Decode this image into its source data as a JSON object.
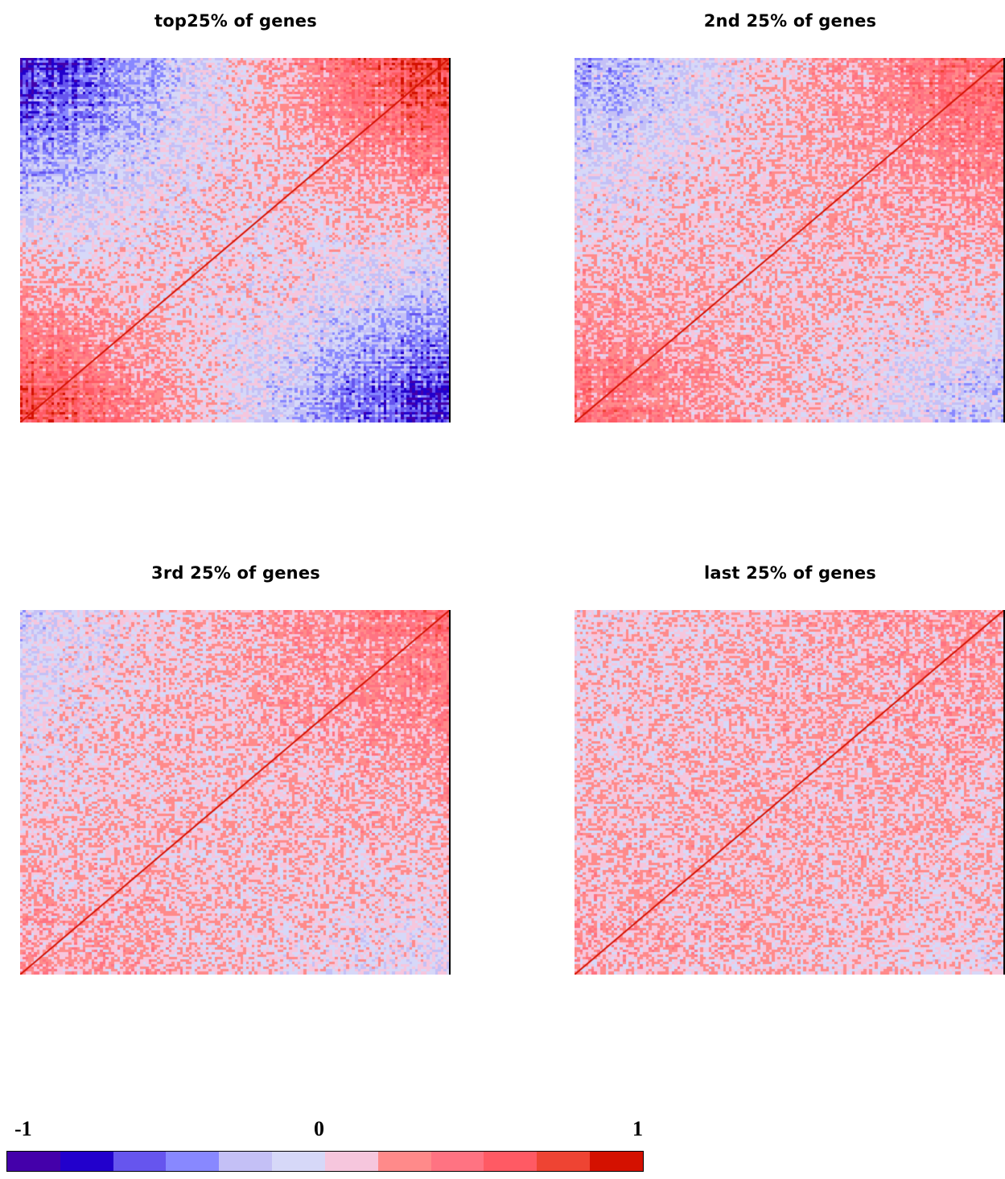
{
  "chart_data": [
    {
      "type": "heatmap",
      "title": "top25% of genes",
      "matrix": "gene-gene correlation, symmetric, diagonal = 1",
      "diagonal_value": 1,
      "blocks": [
        {
          "region": "upper-left",
          "value": -0.85
        },
        {
          "region": "upper-right",
          "value": 0.85
        },
        {
          "region": "lower-left",
          "value": 0.75
        },
        {
          "region": "lower-right",
          "value": -0.85
        },
        {
          "region": "center",
          "value": 0.05
        }
      ],
      "value_range": [
        -1,
        1
      ],
      "grid": false
    },
    {
      "type": "heatmap",
      "title": "2nd 25% of genes",
      "matrix": "gene-gene correlation, symmetric, diagonal = 1",
      "diagonal_value": 1,
      "blocks": [
        {
          "region": "upper-left",
          "value": -0.4
        },
        {
          "region": "upper-right",
          "value": 0.55
        },
        {
          "region": "lower-left",
          "value": 0.45
        },
        {
          "region": "lower-right",
          "value": -0.3
        },
        {
          "region": "center",
          "value": 0.1
        }
      ],
      "value_range": [
        -1,
        1
      ],
      "grid": false
    },
    {
      "type": "heatmap",
      "title": "3rd 25% of genes",
      "matrix": "gene-gene correlation, symmetric, diagonal = 1",
      "diagonal_value": 1,
      "blocks": [
        {
          "region": "upper-left",
          "value": -0.15
        },
        {
          "region": "upper-right",
          "value": 0.4
        },
        {
          "region": "lower-left",
          "value": 0.2
        },
        {
          "region": "lower-right",
          "value": -0.1
        },
        {
          "region": "center",
          "value": 0.1
        }
      ],
      "value_range": [
        -1,
        1
      ],
      "grid": false
    },
    {
      "type": "heatmap",
      "title": "last 25% of genes",
      "matrix": "gene-gene correlation, symmetric, diagonal = 1",
      "diagonal_value": 1,
      "blocks": [
        {
          "region": "upper-left",
          "value": 0.0
        },
        {
          "region": "upper-right",
          "value": 0.2
        },
        {
          "region": "lower-left",
          "value": 0.15
        },
        {
          "region": "lower-right",
          "value": 0.0
        },
        {
          "region": "center",
          "value": 0.1
        }
      ],
      "value_range": [
        -1,
        1
      ],
      "grid": false
    }
  ],
  "legend": {
    "tick_min": "-1",
    "tick_mid": "0",
    "tick_max": "1",
    "colors": [
      "#4400AA",
      "#2200CC",
      "#6655EE",
      "#8888FF",
      "#C4C0F6",
      "#D6D8F8",
      "#F6C6DD",
      "#FF8A8A",
      "#FF7382",
      "#FF5A64",
      "#EE4433",
      "#D41100"
    ]
  }
}
